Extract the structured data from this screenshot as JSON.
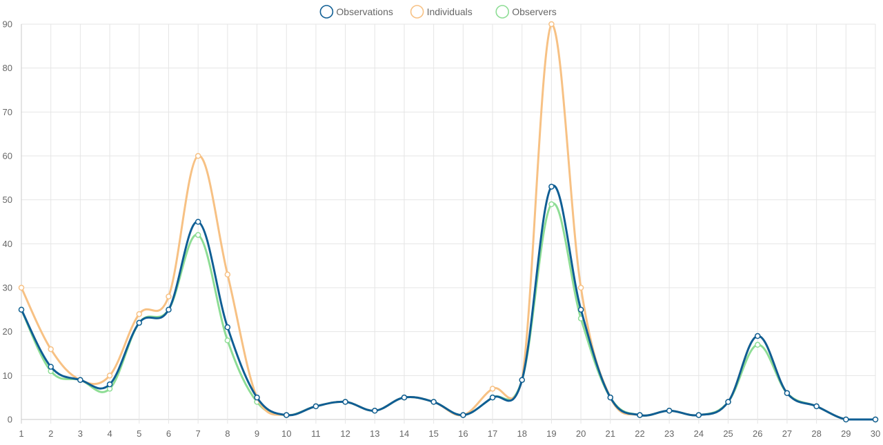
{
  "chart_data": {
    "type": "line",
    "title": "",
    "xlabel": "",
    "ylabel": "",
    "x": [
      1,
      2,
      3,
      4,
      5,
      6,
      7,
      8,
      9,
      10,
      11,
      12,
      13,
      14,
      15,
      16,
      17,
      18,
      19,
      20,
      21,
      22,
      23,
      24,
      25,
      26,
      27,
      28,
      29,
      30
    ],
    "x_tick_labels": [
      "1",
      "2",
      "3",
      "4",
      "5",
      "6",
      "7",
      "8",
      "9",
      "10",
      "11",
      "12",
      "13",
      "14",
      "15",
      "16",
      "17",
      "18",
      "19",
      "20",
      "21",
      "22",
      "23",
      "24",
      "25",
      "26",
      "27",
      "28",
      "29",
      "30"
    ],
    "ylim": [
      0,
      90
    ],
    "y_ticks": [
      0,
      10,
      20,
      30,
      40,
      50,
      60,
      70,
      80,
      90
    ],
    "y_tick_labels": [
      "0",
      "10",
      "20",
      "30",
      "40",
      "50",
      "60",
      "70",
      "80",
      "90"
    ],
    "grid": true,
    "legend_position": "top-center",
    "series": [
      {
        "name": "Observations",
        "color": "#0f5e94",
        "values": [
          25,
          12,
          9,
          8,
          22,
          25,
          45,
          21,
          5,
          1,
          3,
          4,
          2,
          5,
          4,
          1,
          5,
          9,
          53,
          25,
          5,
          1,
          2,
          1,
          4,
          19,
          6,
          3,
          0,
          0
        ]
      },
      {
        "name": "Individuals",
        "color": "#f7c184",
        "values": [
          30,
          16,
          9,
          10,
          24,
          28,
          60,
          33,
          5,
          1,
          3,
          4,
          2,
          5,
          4,
          1,
          7,
          9,
          90,
          30,
          5,
          1,
          2,
          1,
          4,
          19,
          6,
          3,
          0,
          0
        ]
      },
      {
        "name": "Observers",
        "color": "#8edd95",
        "values": [
          25,
          11,
          9,
          7,
          22,
          25,
          42,
          18,
          4,
          1,
          3,
          4,
          2,
          5,
          4,
          1,
          5,
          9,
          49,
          23,
          5,
          1,
          2,
          1,
          4,
          17,
          6,
          3,
          0,
          0
        ]
      }
    ]
  }
}
